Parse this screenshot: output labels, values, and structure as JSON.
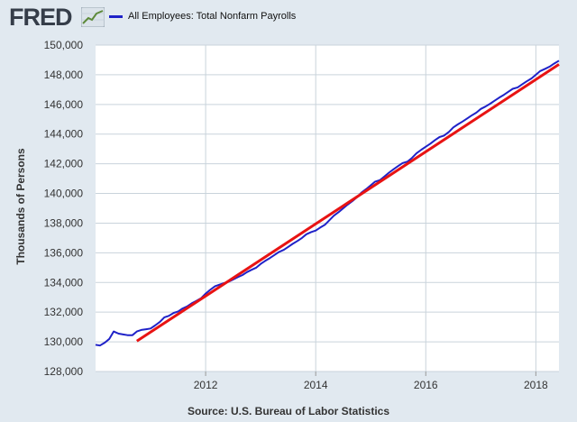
{
  "header": {
    "logo_text": "FRED",
    "logo_icon": "fred-trend-graph-icon",
    "legend_label": "All Employees: Total Nonfarm Payrolls"
  },
  "colors": {
    "background": "#e1e9f0",
    "plot_background": "#ffffff",
    "grid": "#c9d3db",
    "series": "#1f22c8",
    "trend": "#e81313"
  },
  "chart_data": {
    "type": "line",
    "ylabel": "Thousands of Persons",
    "source": "Source: U.S. Bureau of Labor Statistics",
    "xlim": [
      2010.0,
      2018.42
    ],
    "ylim": [
      128000,
      150000
    ],
    "x_ticks": [
      2012,
      2014,
      2016,
      2018
    ],
    "y_ticks": [
      128000,
      130000,
      132000,
      134000,
      136000,
      138000,
      140000,
      142000,
      144000,
      146000,
      148000,
      150000
    ],
    "y_tick_labels": [
      "128,000",
      "130,000",
      "132,000",
      "134,000",
      "136,000",
      "138,000",
      "140,000",
      "142,000",
      "144,000",
      "146,000",
      "148,000",
      "150,000"
    ],
    "grid": true,
    "legend_position": "top",
    "series": [
      {
        "name": "All Employees: Total Nonfarm Payrolls",
        "color": "#1f22c8",
        "x": [
          2010.0,
          2010.08,
          2010.17,
          2010.25,
          2010.33,
          2010.42,
          2010.5,
          2010.58,
          2010.67,
          2010.75,
          2010.83,
          2010.92,
          2011.0,
          2011.08,
          2011.17,
          2011.25,
          2011.33,
          2011.42,
          2011.5,
          2011.58,
          2011.67,
          2011.75,
          2011.83,
          2011.92,
          2012.0,
          2012.08,
          2012.17,
          2012.25,
          2012.33,
          2012.42,
          2012.5,
          2012.58,
          2012.67,
          2012.75,
          2012.83,
          2012.92,
          2013.0,
          2013.08,
          2013.17,
          2013.25,
          2013.33,
          2013.42,
          2013.5,
          2013.58,
          2013.67,
          2013.75,
          2013.83,
          2013.92,
          2014.0,
          2014.08,
          2014.17,
          2014.25,
          2014.33,
          2014.42,
          2014.5,
          2014.58,
          2014.67,
          2014.75,
          2014.83,
          2014.92,
          2015.0,
          2015.08,
          2015.17,
          2015.25,
          2015.33,
          2015.42,
          2015.5,
          2015.58,
          2015.67,
          2015.75,
          2015.83,
          2015.92,
          2016.0,
          2016.08,
          2016.17,
          2016.25,
          2016.33,
          2016.42,
          2016.5,
          2016.58,
          2016.67,
          2016.75,
          2016.83,
          2016.92,
          2017.0,
          2017.08,
          2017.17,
          2017.25,
          2017.33,
          2017.42,
          2017.5,
          2017.58,
          2017.67,
          2017.75,
          2017.83,
          2017.92,
          2018.0,
          2018.08,
          2018.17,
          2018.25,
          2018.33,
          2018.42
        ],
        "values": [
          129800,
          129750,
          129950,
          130200,
          130700,
          130550,
          130500,
          130450,
          130450,
          130700,
          130800,
          130850,
          130900,
          131100,
          131350,
          131650,
          131750,
          131950,
          132050,
          132250,
          132400,
          132600,
          132750,
          132950,
          133250,
          133500,
          133750,
          133850,
          133950,
          134050,
          134200,
          134350,
          134500,
          134700,
          134850,
          135000,
          135250,
          135450,
          135650,
          135850,
          136050,
          136200,
          136400,
          136600,
          136800,
          137000,
          137250,
          137400,
          137500,
          137700,
          137900,
          138200,
          138500,
          138750,
          139000,
          139250,
          139500,
          139750,
          140050,
          140300,
          140550,
          140800,
          140900,
          141150,
          141400,
          141650,
          141850,
          142050,
          142150,
          142400,
          142700,
          142950,
          143150,
          143350,
          143600,
          143800,
          143900,
          144150,
          144450,
          144650,
          144850,
          145050,
          145250,
          145450,
          145700,
          145850,
          146050,
          146250,
          146450,
          146650,
          146850,
          147050,
          147150,
          147350,
          147550,
          147750,
          148000,
          148250,
          148400,
          148550,
          148750,
          148950
        ]
      },
      {
        "color": "#e81313",
        "x": [
          2010.75,
          2018.42
        ],
        "values": [
          130050,
          148700
        ]
      }
    ]
  }
}
